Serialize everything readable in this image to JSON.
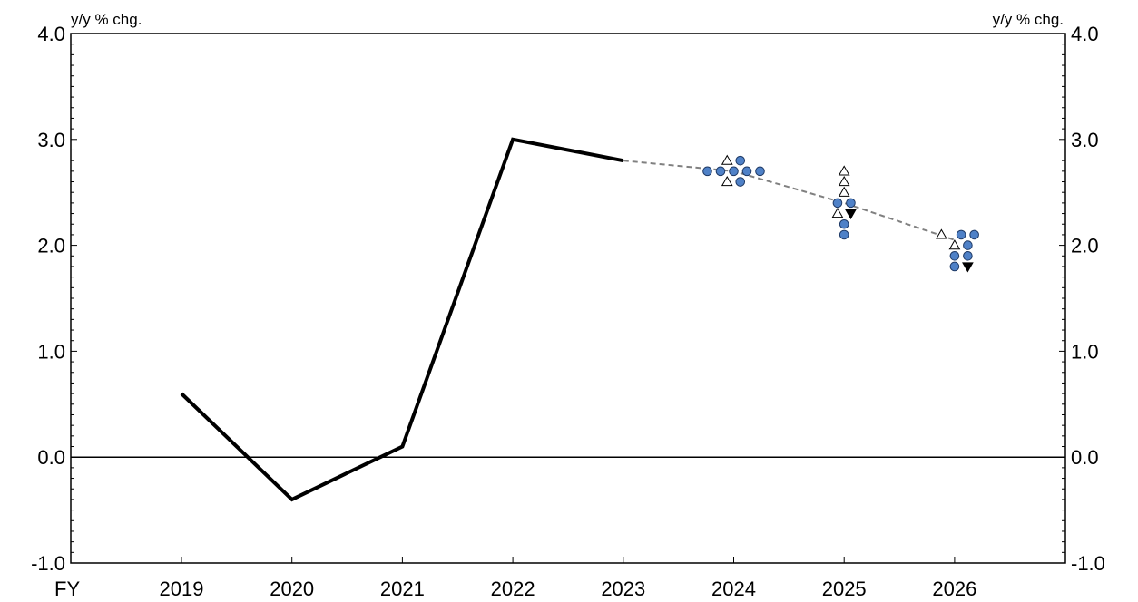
{
  "chart_data": {
    "type": "line",
    "x_axis_title": "FY",
    "left_unit_label": "y/y % chg.",
    "right_unit_label": "y/y % chg.",
    "ylim": [
      -1.0,
      4.0
    ],
    "y_major_ticks": [
      "-1.0",
      "0.0",
      "1.0",
      "2.0",
      "3.0",
      "4.0"
    ],
    "categories": [
      "2019",
      "2020",
      "2021",
      "2022",
      "2023",
      "2024",
      "2025",
      "2026"
    ],
    "actual": {
      "x": [
        2019,
        2020,
        2021,
        2022,
        2023
      ],
      "values": [
        0.6,
        -0.4,
        0.1,
        3.0,
        2.8
      ]
    },
    "projection_median": {
      "x": [
        2023,
        2024,
        2025,
        2026
      ],
      "values": [
        2.8,
        2.7,
        2.4,
        2.05
      ]
    },
    "circle_markers": [
      {
        "x": 2024,
        "y": 2.7,
        "offset": -2
      },
      {
        "x": 2024,
        "y": 2.7,
        "offset": -1
      },
      {
        "x": 2024,
        "y": 2.7,
        "offset": 0
      },
      {
        "x": 2024,
        "y": 2.7,
        "offset": 1
      },
      {
        "x": 2024,
        "y": 2.7,
        "offset": 2
      },
      {
        "x": 2024,
        "y": 2.8,
        "offset": 0.5
      },
      {
        "x": 2024,
        "y": 2.6,
        "offset": 0.5
      },
      {
        "x": 2025,
        "y": 2.4,
        "offset": -0.5
      },
      {
        "x": 2025,
        "y": 2.4,
        "offset": 0.5
      },
      {
        "x": 2025,
        "y": 2.2,
        "offset": 0
      },
      {
        "x": 2025,
        "y": 2.1,
        "offset": 0
      },
      {
        "x": 2026,
        "y": 2.1,
        "offset": 0.5
      },
      {
        "x": 2026,
        "y": 2.1,
        "offset": 1.5
      },
      {
        "x": 2026,
        "y": 2.0,
        "offset": 1
      },
      {
        "x": 2026,
        "y": 1.9,
        "offset": 0
      },
      {
        "x": 2026,
        "y": 1.9,
        "offset": 1
      },
      {
        "x": 2026,
        "y": 1.8,
        "offset": 0
      }
    ],
    "open_triangle_markers": [
      {
        "x": 2024,
        "y": 2.8,
        "offset": -0.5
      },
      {
        "x": 2024,
        "y": 2.6,
        "offset": -0.5
      },
      {
        "x": 2025,
        "y": 2.7,
        "offset": 0
      },
      {
        "x": 2025,
        "y": 2.6,
        "offset": 0
      },
      {
        "x": 2025,
        "y": 2.5,
        "offset": 0
      },
      {
        "x": 2025,
        "y": 2.3,
        "offset": -0.5
      },
      {
        "x": 2026,
        "y": 2.1,
        "offset": -1
      },
      {
        "x": 2026,
        "y": 2.0,
        "offset": 0
      }
    ],
    "filled_down_triangle_markers": [
      {
        "x": 2025,
        "y": 2.3,
        "offset": 0.5
      },
      {
        "x": 2026,
        "y": 1.8,
        "offset": 1
      }
    ],
    "colors": {
      "actual_line": "#000000",
      "projection_line": "#808080",
      "circle_fill": "#4f81c7",
      "circle_stroke": "#1f3a66",
      "zero_line": "#000000"
    }
  }
}
